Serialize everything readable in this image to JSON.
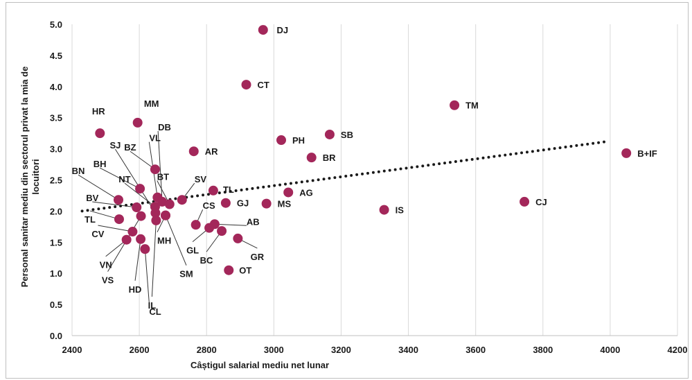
{
  "chart_data": {
    "type": "scatter",
    "title": "",
    "xlabel": "Câștigul salarial mediu net lunar",
    "ylabel_lines": [
      "Personal sanitar mediu din sectorul privat la mia de",
      "locuitori"
    ],
    "xlim": [
      2400,
      4200
    ],
    "ylim": [
      0.0,
      5.0
    ],
    "x_ticks": [
      "2400",
      "2600",
      "2800",
      "3000",
      "3200",
      "3400",
      "3600",
      "3800",
      "4000",
      "4200"
    ],
    "y_ticks": [
      "0.0",
      "0.5",
      "1.0",
      "1.5",
      "2.0",
      "2.5",
      "3.0",
      "3.5",
      "4.0",
      "4.5",
      "5.0"
    ],
    "grid": "vertical",
    "marker_color": "#a3275a",
    "trendline": {
      "style": "dotted",
      "color": "#1a1a1a",
      "x": [
        2430,
        3995
      ],
      "y": [
        2.0,
        3.12
      ]
    },
    "points": [
      {
        "label": "DJ",
        "x": 2968,
        "y": 4.91
      },
      {
        "label": "CT",
        "x": 2918,
        "y": 4.03
      },
      {
        "label": "TM",
        "x": 3537,
        "y": 3.7
      },
      {
        "label": "MM",
        "x": 2595,
        "y": 3.42
      },
      {
        "label": "HR",
        "x": 2483,
        "y": 3.25
      },
      {
        "label": "SB",
        "x": 3166,
        "y": 3.23
      },
      {
        "label": "PH",
        "x": 3022,
        "y": 3.14
      },
      {
        "label": "B+IF",
        "x": 4048,
        "y": 2.93
      },
      {
        "label": "AR",
        "x": 2762,
        "y": 2.96
      },
      {
        "label": "BR",
        "x": 3112,
        "y": 2.86
      },
      {
        "label": "BZ",
        "x": 2647,
        "y": 2.67
      },
      {
        "label": "BH",
        "x": 2602,
        "y": 2.36
      },
      {
        "label": "TL",
        "x": 2820,
        "y": 2.33
      },
      {
        "label": "AG",
        "x": 3043,
        "y": 2.3
      },
      {
        "label": "SV",
        "x": 2727,
        "y": 2.18
      },
      {
        "label": "VL",
        "x": 2654,
        "y": 2.22
      },
      {
        "label": "DB",
        "x": 2668,
        "y": 2.15
      },
      {
        "label": "BT",
        "x": 2690,
        "y": 2.11
      },
      {
        "label": "BN",
        "x": 2538,
        "y": 2.18
      },
      {
        "label": "CJ",
        "x": 3745,
        "y": 2.15
      },
      {
        "label": "GJ",
        "x": 2857,
        "y": 2.13
      },
      {
        "label": "MS",
        "x": 2978,
        "y": 2.12
      },
      {
        "label": "NT",
        "x": 2647,
        "y": 2.07
      },
      {
        "label": "BV",
        "x": 2592,
        "y": 2.06
      },
      {
        "label": "IS",
        "x": 3328,
        "y": 2.02
      },
      {
        "label": "SJ",
        "x": 2648,
        "y": 1.97
      },
      {
        "label": "MH",
        "x": 2678,
        "y": 1.93
      },
      {
        "label": "TL",
        "x": 2540,
        "y": 1.87
      },
      {
        "label": "VS",
        "x": 2605,
        "y": 1.92
      },
      {
        "label": "IL",
        "x": 2650,
        "y": 1.85
      },
      {
        "label": "CS",
        "x": 2768,
        "y": 1.78
      },
      {
        "label": "AB",
        "x": 2824,
        "y": 1.79
      },
      {
        "label": "GL",
        "x": 2808,
        "y": 1.73
      },
      {
        "label": "BC",
        "x": 2845,
        "y": 1.68
      },
      {
        "label": "CV",
        "x": 2580,
        "y": 1.67
      },
      {
        "label": "GR",
        "x": 2893,
        "y": 1.56
      },
      {
        "label": "HD",
        "x": 2604,
        "y": 1.55
      },
      {
        "label": "VN",
        "x": 2562,
        "y": 1.54
      },
      {
        "label": "CL",
        "x": 2617,
        "y": 1.39
      },
      {
        "label": "SM",
        "x": 2678,
        "y": 1.93
      },
      {
        "label": "OT",
        "x": 2866,
        "y": 1.05
      }
    ]
  }
}
